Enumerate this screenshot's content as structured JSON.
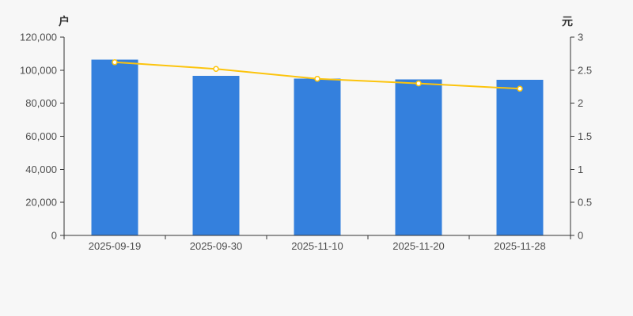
{
  "chart_data": {
    "type": "bar+line",
    "title": "",
    "legend": false,
    "grid": false,
    "categories": [
      "2025-09-19",
      "2025-09-30",
      "2025-11-10",
      "2025-11-20",
      "2025-11-28"
    ],
    "series": [
      {
        "type": "bar",
        "axis": "left",
        "values": [
          106400,
          96600,
          95000,
          94500,
          94200
        ],
        "color": "#3480dd"
      },
      {
        "type": "line",
        "axis": "right",
        "values": [
          2.62,
          2.52,
          2.37,
          2.3,
          2.22
        ],
        "color": "#fcc40d",
        "marker": "hollow-circle"
      }
    ],
    "left_axis": {
      "title": "户",
      "min": 0,
      "max": 120000,
      "step": 20000,
      "tick_labels_top_to_bottom": [
        "120,000",
        "100,000",
        "80,000",
        "60,000",
        "40,000",
        "20,000",
        "0"
      ]
    },
    "right_axis": {
      "title": "元",
      "min": 0,
      "max": 3,
      "step": 0.5,
      "tick_labels_top_to_bottom": [
        "3",
        "2.5",
        "2",
        "1.5",
        "1",
        "0.5",
        "0"
      ]
    }
  },
  "colors": {
    "background": "#f7f7f7",
    "axis_line": "#333333",
    "tick_text": "#4d4d4d",
    "bar": "#3480dd",
    "line": "#fcc40d",
    "marker_fill": "#ffffff"
  }
}
